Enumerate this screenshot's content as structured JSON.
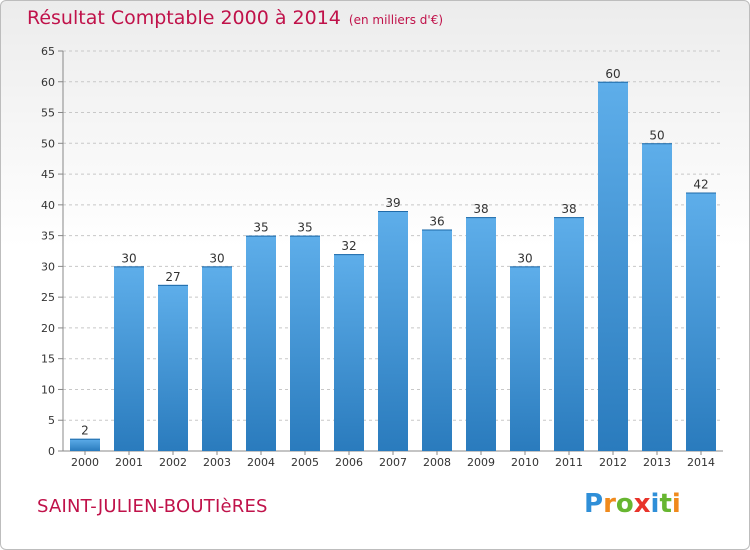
{
  "header": {
    "title": "Résultat Comptable 2000 à 2014",
    "subtitle": "(en milliers d'€)"
  },
  "commune": "SAINT-JULIEN-BOUTIèRES",
  "logo": {
    "letters": [
      "P",
      "r",
      "o",
      "x",
      "i",
      "t",
      "i"
    ],
    "colors": [
      "#2f8fd8",
      "#f08a1c",
      "#67b630",
      "#e8332a",
      "#2f8fd8",
      "#67b630",
      "#f08a1c"
    ]
  },
  "colors": {
    "title": "#c0124a",
    "bar_light": "#5eaeea",
    "bar_dark": "#2a7bbd",
    "grid": "#c8c8c8"
  },
  "chart_data": {
    "type": "bar",
    "title": "Résultat Comptable 2000 à 2014",
    "subtitle": "(en milliers d'€)",
    "categories": [
      "2000",
      "2001",
      "2002",
      "2003",
      "2004",
      "2005",
      "2006",
      "2007",
      "2008",
      "2009",
      "2010",
      "2011",
      "2012",
      "2013",
      "2014"
    ],
    "values": [
      2,
      30,
      27,
      30,
      35,
      35,
      32,
      39,
      36,
      38,
      30,
      38,
      60,
      50,
      42
    ],
    "xlabel": "",
    "ylabel": "",
    "ylim": [
      0,
      65
    ],
    "yticks": [
      0,
      5,
      10,
      15,
      20,
      25,
      30,
      35,
      40,
      45,
      50,
      55,
      60,
      65
    ],
    "grid": "horizontal dashed",
    "data_labels": true
  }
}
